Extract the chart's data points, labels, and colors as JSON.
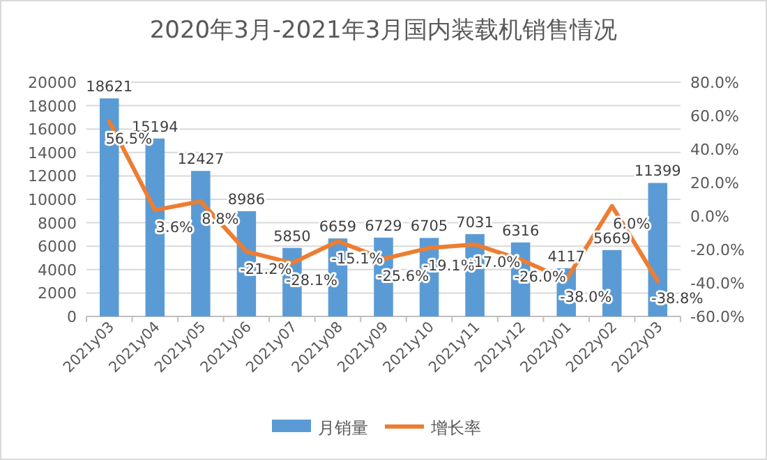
{
  "chart_data": {
    "type": "bar",
    "title": "2020年3月-2021年3月国内装载机销售情况",
    "categories": [
      "2021y03",
      "2021y04",
      "2021y05",
      "2021y06",
      "2021y07",
      "2021y08",
      "2021y09",
      "2021y10",
      "2021y11",
      "2021y12",
      "2022y01",
      "2022y02",
      "2022y03"
    ],
    "series": [
      {
        "name": "月销量",
        "color": "#5b9bd5",
        "values": [
          18621,
          15194,
          12427,
          8986,
          5850,
          6659,
          6729,
          6705,
          7031,
          6316,
          4117,
          5669,
          11399
        ],
        "value_labels": [
          "18621",
          "15194",
          "12427",
          "8986",
          "5850",
          "6659",
          "6729",
          "6705",
          "7031",
          "6316",
          "4117",
          "5669",
          "11399"
        ]
      },
      {
        "name": "增长率",
        "type": "line",
        "axis": "y2",
        "color": "#ed7d31",
        "values": [
          56.5,
          3.6,
          8.8,
          -21.2,
          -28.1,
          -15.1,
          -25.6,
          -19.1,
          -17.0,
          -26.0,
          -38.0,
          6.0,
          -38.8
        ],
        "value_labels": [
          "56.5%",
          "3.6%",
          "8.8%",
          "-21.2%",
          "-28.1%",
          "-15.1%",
          "-25.6%",
          "-19.1%",
          "-17.0%",
          "-26.0%",
          "-38.0%",
          "6.0%",
          "-38.8%"
        ]
      }
    ],
    "ylim": [
      0,
      20000
    ],
    "yticks": [
      0,
      2000,
      4000,
      6000,
      8000,
      10000,
      12000,
      14000,
      16000,
      18000,
      20000
    ],
    "y2lim": [
      -60,
      80
    ],
    "y2ticks": [
      {
        "value": -60,
        "label": "-60.0%"
      },
      {
        "value": -40,
        "label": "-40.0%"
      },
      {
        "value": -20,
        "label": "-20.0%"
      },
      {
        "value": 0,
        "label": "0.0%"
      },
      {
        "value": 20,
        "label": "20.0%"
      },
      {
        "value": 40,
        "label": "40.0%"
      },
      {
        "value": 60,
        "label": "60.0%"
      },
      {
        "value": 80,
        "label": "80.0%"
      }
    ],
    "grid": "y",
    "legend": "bottom",
    "marker": "none",
    "line_style": "solid"
  }
}
